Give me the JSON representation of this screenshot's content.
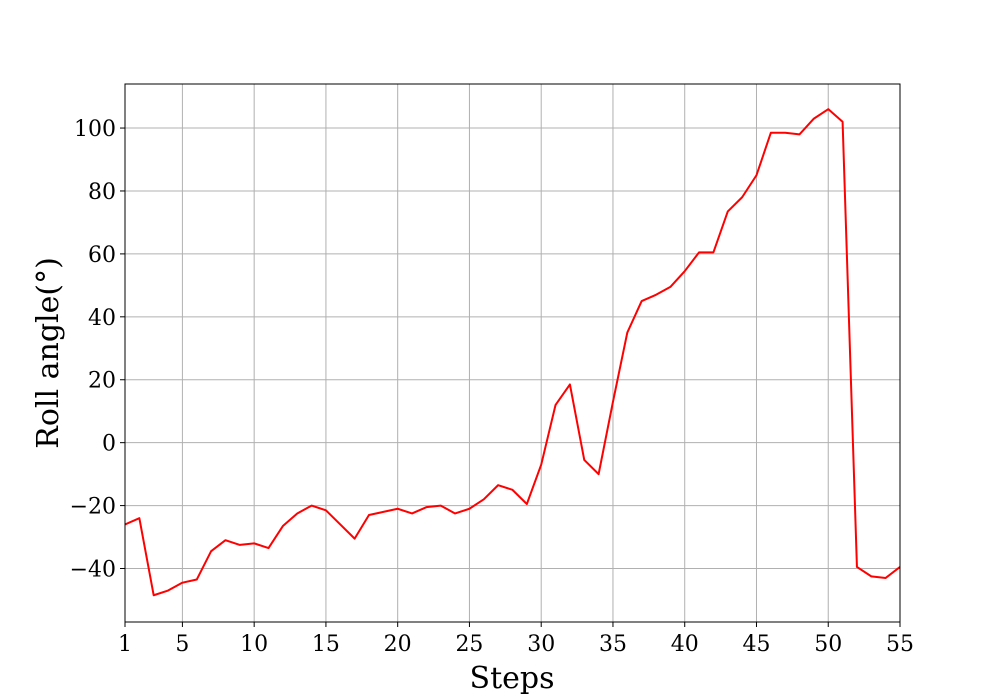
{
  "chart_data": {
    "type": "line",
    "title": "",
    "xlabel": "Steps",
    "ylabel": "Roll angle(°)",
    "xlim": [
      1,
      55
    ],
    "ylim": [
      -57,
      114
    ],
    "xticks": [
      1,
      5,
      10,
      15,
      20,
      25,
      30,
      35,
      40,
      45,
      50,
      55
    ],
    "yticks": [
      -40,
      -20,
      0,
      20,
      40,
      60,
      80,
      100
    ],
    "grid": true,
    "series": [
      {
        "color": "#ff0000",
        "x": [
          1,
          2,
          3,
          4,
          5,
          6,
          7,
          8,
          9,
          10,
          11,
          12,
          13,
          14,
          15,
          16,
          17,
          18,
          19,
          20,
          21,
          22,
          23,
          24,
          25,
          26,
          27,
          28,
          29,
          30,
          31,
          32,
          33,
          34,
          35,
          36,
          37,
          38,
          39,
          40,
          41,
          42,
          43,
          44,
          45,
          46,
          47,
          48,
          49,
          50,
          51,
          52,
          53,
          54,
          55
        ],
        "values": [
          -26,
          -24,
          -48.5,
          -47,
          -44.5,
          -43.5,
          -34.5,
          -31,
          -32.5,
          -32,
          -33.5,
          -26.5,
          -22.5,
          -20,
          -21.5,
          -26,
          -30.5,
          -23,
          -22,
          -21,
          -22.5,
          -20.5,
          -20,
          -22.5,
          -21,
          -18,
          -13.5,
          -15,
          -19.5,
          -7,
          12,
          18.5,
          -5.5,
          -10,
          13,
          35,
          45,
          47,
          49.5,
          54.5,
          60.5,
          60.5,
          73.5,
          78,
          85,
          98.5,
          98.5,
          98,
          103,
          106,
          102,
          -39.5,
          -42.5,
          -43,
          -39.5
        ]
      }
    ]
  }
}
